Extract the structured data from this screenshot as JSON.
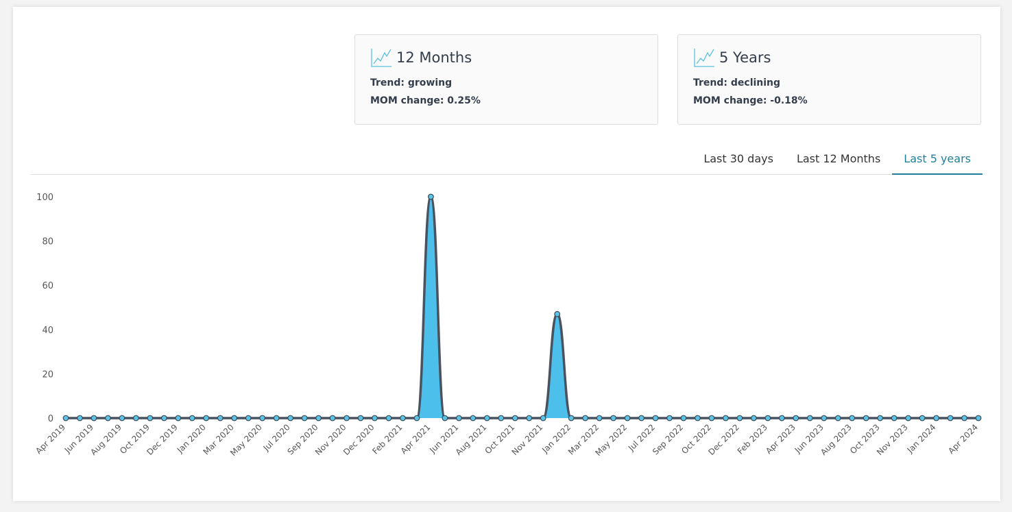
{
  "cards": [
    {
      "title": "12 Months",
      "trend": "Trend: growing",
      "mom": "MOM change: 0.25%"
    },
    {
      "title": "5 Years",
      "trend": "Trend: declining",
      "mom": "MOM change: -0.18%"
    }
  ],
  "tabs": {
    "items": [
      "Last 30 days",
      "Last 12 Months",
      "Last 5 years"
    ],
    "active": 2
  },
  "chart_data": {
    "type": "area",
    "categories": [
      "Apr 2019",
      null,
      "Jun 2019",
      null,
      "Aug 2019",
      null,
      "Oct 2019",
      null,
      "Dec 2019",
      null,
      "Jan 2020",
      null,
      "Mar 2020",
      null,
      "May 2020",
      null,
      "Jul 2020",
      null,
      "Sep 2020",
      null,
      "Nov 2020",
      null,
      "Dec 2020",
      null,
      "Feb 2021",
      null,
      "Apr 2021",
      null,
      "Jun 2021",
      null,
      "Aug 2021",
      null,
      "Oct 2021",
      null,
      "Nov 2021",
      null,
      "Jan 2022",
      null,
      "Mar 2022",
      null,
      "May 2022",
      null,
      "Jul 2022",
      null,
      "Sep 2022",
      null,
      "Oct 2022",
      null,
      "Dec 2022",
      null,
      "Feb 2023",
      null,
      "Apr 2023",
      null,
      "Jun 2023",
      null,
      "Aug 2023",
      null,
      "Oct 2023",
      null,
      "Nov 2023",
      null,
      "Jan 2024",
      null,
      null,
      "Apr 2024"
    ],
    "series": [
      {
        "color": "#4cc0ea",
        "values": [
          0,
          0,
          0,
          0,
          0,
          0,
          0,
          0,
          0,
          0,
          0,
          0,
          0,
          0,
          0,
          0,
          0,
          0,
          0,
          0,
          0,
          0,
          0,
          0,
          0,
          0,
          100,
          0,
          0,
          0,
          0,
          0,
          0,
          0,
          0,
          47,
          0,
          0,
          0,
          0,
          0,
          0,
          0,
          0,
          0,
          0,
          0,
          0,
          0,
          0,
          0,
          0,
          0,
          0,
          0,
          0,
          0,
          0,
          0,
          0,
          0,
          0,
          0,
          0,
          0,
          0
        ]
      }
    ],
    "ylim": [
      0,
      100
    ],
    "yticks": [
      0,
      20,
      40,
      60,
      80,
      100
    ],
    "grid": false
  }
}
